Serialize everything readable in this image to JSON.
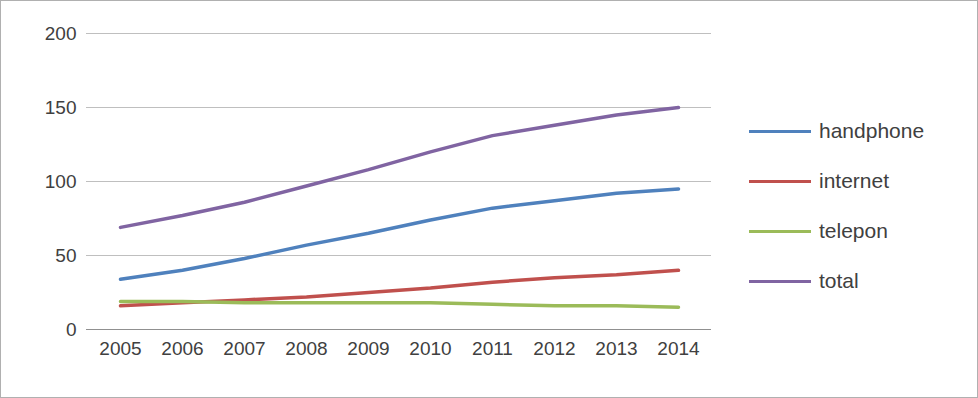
{
  "chart_data": {
    "type": "line",
    "categories": [
      "2005",
      "2006",
      "2007",
      "2008",
      "2009",
      "2010",
      "2011",
      "2012",
      "2013",
      "2014"
    ],
    "series": [
      {
        "name": "handphone",
        "color": "#4f81bd",
        "values": [
          34,
          40,
          48,
          57,
          65,
          74,
          82,
          87,
          92,
          95
        ]
      },
      {
        "name": "internet",
        "color": "#c0504d",
        "values": [
          16,
          18,
          20,
          22,
          25,
          28,
          32,
          35,
          37,
          40
        ]
      },
      {
        "name": "telepon",
        "color": "#9bbb59",
        "values": [
          19,
          19,
          18,
          18,
          18,
          18,
          17,
          16,
          16,
          15
        ]
      },
      {
        "name": "total",
        "color": "#8064a2",
        "values": [
          69,
          77,
          86,
          97,
          108,
          120,
          131,
          138,
          145,
          150
        ]
      }
    ],
    "ylim": [
      0,
      200
    ],
    "yticks": [
      0,
      50,
      100,
      150,
      200
    ],
    "grid": true,
    "legend": "right"
  }
}
